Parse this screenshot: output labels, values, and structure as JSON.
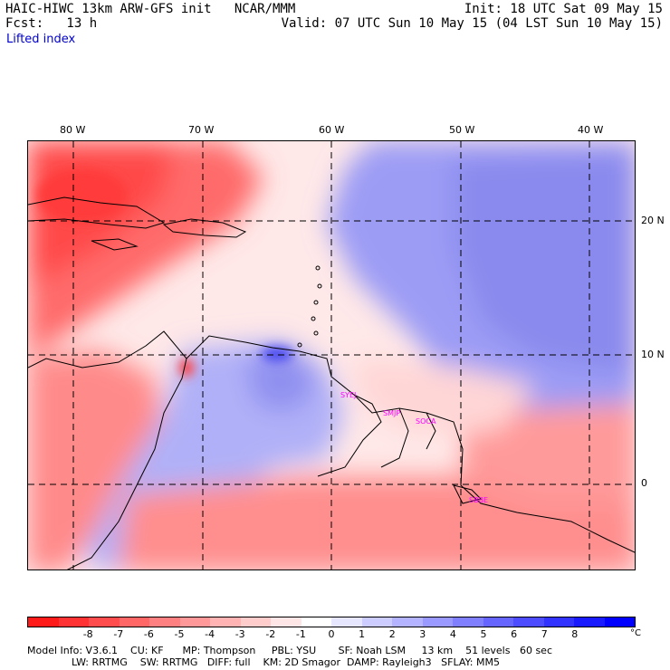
{
  "header": {
    "line1_left": "HAIC-HIWC 13km ARW-GFS init   NCAR/MMM",
    "line1_right": "Init: 18 UTC Sat 09 May 15",
    "line2_left": "Fcst:   13 h",
    "line2_right": "Valid: 07 UTC Sun 10 May 15 (04 LST Sun 10 May 15)",
    "subtitle": "Lifted index"
  },
  "map": {
    "lon_labels": [
      "80 W",
      "70 W",
      "60 W",
      "50 W",
      "40 W"
    ],
    "lat_labels": [
      "20 N",
      "10 N",
      "0"
    ],
    "stations": [
      "SYEJ",
      "SMJP",
      "SOCA",
      "SBBE"
    ]
  },
  "colorbar": {
    "colors": [
      "#ff1a1a",
      "#ff3333",
      "#ff4d4d",
      "#ff6666",
      "#ff8080",
      "#ff9999",
      "#ffb3b3",
      "#ffcccc",
      "#ffe6e6",
      "#ffffff",
      "#e6e6ff",
      "#ccccff",
      "#b3b3ff",
      "#9999ff",
      "#8080ff",
      "#6666ff",
      "#4d4dff",
      "#3333ff",
      "#1a1aff",
      "#0000ff"
    ],
    "ticks": [
      "-8",
      "-7",
      "-6",
      "-5",
      "-4",
      "-3",
      "-2",
      "-1",
      "0",
      "1",
      "2",
      "3",
      "4",
      "5",
      "6",
      "7",
      "8"
    ],
    "unit": "°C"
  },
  "footer": {
    "line1": "Model Info: V3.6.1    CU: KF      MP: Thompson     PBL: YSU       SF: Noah LSM     13 km    51 levels   60 sec",
    "line2": "              LW: RRTMG    SW: RRTMG   DIFF: full    KM: 2D Smagor  DAMP: Rayleigh3   SFLAY: MM5"
  }
}
